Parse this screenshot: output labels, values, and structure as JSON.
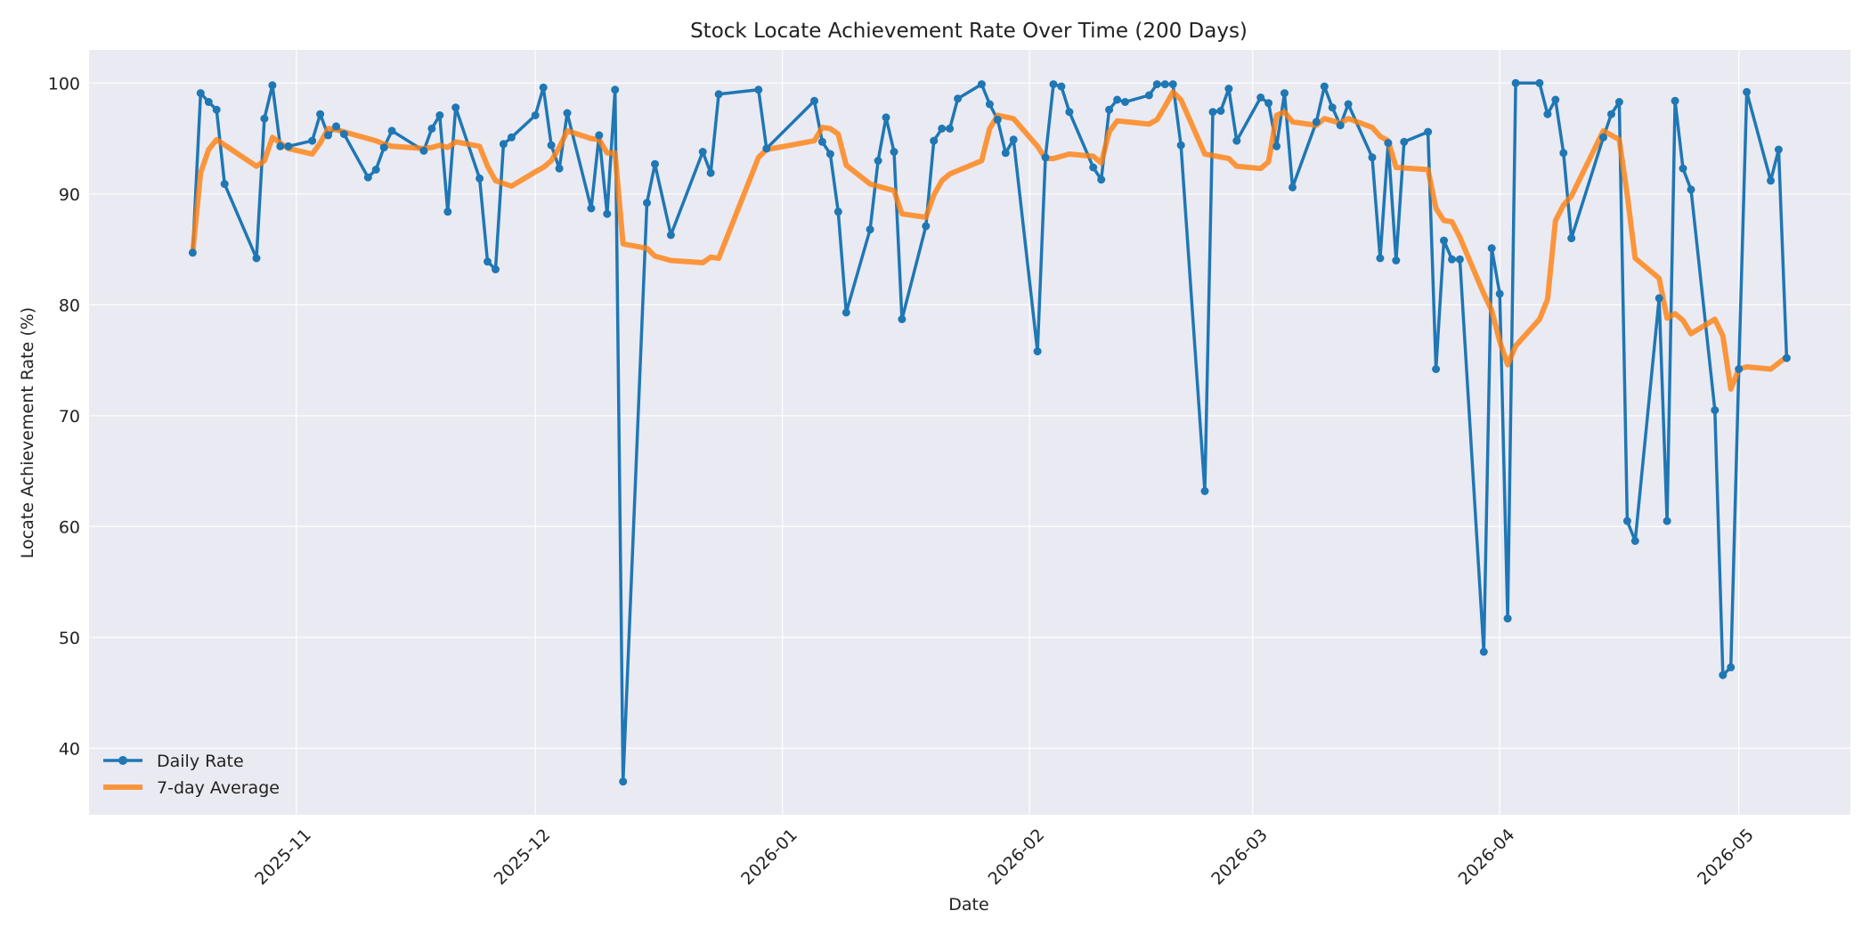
{
  "chart_data": {
    "type": "line",
    "title": "Stock Locate Achievement Rate Over Time (200 Days)",
    "xlabel": "Date",
    "ylabel": "Locate Achievement Rate (%)",
    "x_range": [
      "2025-10-06",
      "2026-05-15"
    ],
    "ylim": [
      34,
      103
    ],
    "y_ticks": [
      40,
      50,
      60,
      70,
      80,
      90,
      100
    ],
    "x_ticks": [
      "2025-11",
      "2025-12",
      "2026-01",
      "2026-02",
      "2026-03",
      "2026-04",
      "2026-05"
    ],
    "grid": true,
    "legend_position": "bottom-left",
    "colors": {
      "daily": "#1f77b4",
      "avg": "#ff7f0e",
      "background": "#eaeaf2"
    },
    "series": [
      {
        "name": "Daily Rate",
        "points": [
          [
            "2025-10-19",
            84.7
          ],
          [
            "2025-10-20",
            99.1
          ],
          [
            "2025-10-21",
            98.3
          ],
          [
            "2025-10-22",
            97.6
          ],
          [
            "2025-10-23",
            90.9
          ],
          [
            "2025-10-27",
            84.2
          ],
          [
            "2025-10-28",
            96.8
          ],
          [
            "2025-10-29",
            99.8
          ],
          [
            "2025-10-30",
            94.3
          ],
          [
            "2025-10-31",
            94.3
          ],
          [
            "2025-11-03",
            94.8
          ],
          [
            "2025-11-04",
            97.2
          ],
          [
            "2025-11-05",
            95.3
          ],
          [
            "2025-11-06",
            96.1
          ],
          [
            "2025-11-07",
            95.4
          ],
          [
            "2025-11-10",
            91.5
          ],
          [
            "2025-11-11",
            92.2
          ],
          [
            "2025-11-12",
            94.2
          ],
          [
            "2025-11-13",
            95.7
          ],
          [
            "2025-11-17",
            93.9
          ],
          [
            "2025-11-18",
            95.9
          ],
          [
            "2025-11-19",
            97.1
          ],
          [
            "2025-11-20",
            88.4
          ],
          [
            "2025-11-21",
            97.8
          ],
          [
            "2025-11-24",
            91.4
          ],
          [
            "2025-11-25",
            83.9
          ],
          [
            "2025-11-26",
            83.2
          ],
          [
            "2025-11-27",
            94.5
          ],
          [
            "2025-11-28",
            95.1
          ],
          [
            "2025-12-01",
            97.1
          ],
          [
            "2025-12-02",
            99.6
          ],
          [
            "2025-12-03",
            94.4
          ],
          [
            "2025-12-04",
            92.3
          ],
          [
            "2025-12-05",
            97.3
          ],
          [
            "2025-12-08",
            88.7
          ],
          [
            "2025-12-09",
            95.3
          ],
          [
            "2025-12-10",
            88.2
          ],
          [
            "2025-12-11",
            99.4
          ],
          [
            "2025-12-12",
            37.0
          ],
          [
            "2025-12-15",
            89.2
          ],
          [
            "2025-12-16",
            92.7
          ],
          [
            "2025-12-18",
            86.3
          ],
          [
            "2025-12-22",
            93.8
          ],
          [
            "2025-12-23",
            91.9
          ],
          [
            "2025-12-24",
            99.0
          ],
          [
            "2025-12-29",
            99.4
          ],
          [
            "2025-12-30",
            94.1
          ],
          [
            "2026-01-05",
            98.4
          ],
          [
            "2026-01-06",
            94.7
          ],
          [
            "2026-01-07",
            93.6
          ],
          [
            "2026-01-08",
            88.4
          ],
          [
            "2026-01-09",
            79.3
          ],
          [
            "2026-01-12",
            86.8
          ],
          [
            "2026-01-13",
            93.0
          ],
          [
            "2026-01-14",
            96.9
          ],
          [
            "2026-01-15",
            93.8
          ],
          [
            "2026-01-16",
            78.7
          ],
          [
            "2026-01-19",
            87.1
          ],
          [
            "2026-01-20",
            94.8
          ],
          [
            "2026-01-21",
            95.9
          ],
          [
            "2026-01-22",
            95.9
          ],
          [
            "2026-01-23",
            98.6
          ],
          [
            "2026-01-26",
            99.9
          ],
          [
            "2026-01-27",
            98.1
          ],
          [
            "2026-01-28",
            96.7
          ],
          [
            "2026-01-29",
            93.7
          ],
          [
            "2026-01-30",
            94.9
          ],
          [
            "2026-02-02",
            75.8
          ],
          [
            "2026-02-03",
            93.3
          ],
          [
            "2026-02-04",
            99.9
          ],
          [
            "2026-02-05",
            99.7
          ],
          [
            "2026-02-06",
            97.4
          ],
          [
            "2026-02-09",
            92.4
          ],
          [
            "2026-02-10",
            91.3
          ],
          [
            "2026-02-11",
            97.6
          ],
          [
            "2026-02-12",
            98.5
          ],
          [
            "2026-02-13",
            98.3
          ],
          [
            "2026-02-16",
            98.9
          ],
          [
            "2026-02-17",
            99.9
          ],
          [
            "2026-02-18",
            99.9
          ],
          [
            "2026-02-19",
            99.9
          ],
          [
            "2026-02-20",
            94.4
          ],
          [
            "2026-02-23",
            63.2
          ],
          [
            "2026-02-24",
            97.4
          ],
          [
            "2026-02-25",
            97.5
          ],
          [
            "2026-02-26",
            99.5
          ],
          [
            "2026-02-27",
            94.8
          ],
          [
            "2026-03-02",
            98.7
          ],
          [
            "2026-03-03",
            98.2
          ],
          [
            "2026-03-04",
            94.3
          ],
          [
            "2026-03-05",
            99.1
          ],
          [
            "2026-03-06",
            90.6
          ],
          [
            "2026-03-09",
            96.5
          ],
          [
            "2026-03-10",
            99.7
          ],
          [
            "2026-03-11",
            97.8
          ],
          [
            "2026-03-12",
            96.2
          ],
          [
            "2026-03-13",
            98.1
          ],
          [
            "2026-03-16",
            93.3
          ],
          [
            "2026-03-17",
            84.2
          ],
          [
            "2026-03-18",
            94.6
          ],
          [
            "2026-03-19",
            84.0
          ],
          [
            "2026-03-20",
            94.7
          ],
          [
            "2026-03-23",
            95.6
          ],
          [
            "2026-03-24",
            74.2
          ],
          [
            "2026-03-25",
            85.8
          ],
          [
            "2026-03-26",
            84.1
          ],
          [
            "2026-03-27",
            84.1
          ],
          [
            "2026-03-30",
            48.7
          ],
          [
            "2026-03-31",
            85.1
          ],
          [
            "2026-04-01",
            81.0
          ],
          [
            "2026-04-02",
            51.7
          ],
          [
            "2026-04-03",
            100.0
          ],
          [
            "2026-04-06",
            100.0
          ],
          [
            "2026-04-07",
            97.2
          ],
          [
            "2026-04-08",
            98.5
          ],
          [
            "2026-04-09",
            93.7
          ],
          [
            "2026-04-10",
            86.0
          ],
          [
            "2026-04-14",
            95.1
          ],
          [
            "2026-04-15",
            97.2
          ],
          [
            "2026-04-16",
            98.3
          ],
          [
            "2026-04-17",
            60.5
          ],
          [
            "2026-04-18",
            58.7
          ],
          [
            "2026-04-21",
            80.6
          ],
          [
            "2026-04-22",
            60.5
          ],
          [
            "2026-04-23",
            98.4
          ],
          [
            "2026-04-24",
            92.3
          ],
          [
            "2026-04-25",
            90.4
          ],
          [
            "2026-04-28",
            70.5
          ],
          [
            "2026-04-29",
            46.6
          ],
          [
            "2026-04-30",
            47.3
          ],
          [
            "2026-05-01",
            74.2
          ],
          [
            "2026-05-02",
            99.2
          ],
          [
            "2026-05-05",
            91.2
          ],
          [
            "2026-05-06",
            94.0
          ],
          [
            "2026-05-07",
            75.2
          ]
        ]
      },
      {
        "name": "7-day Average",
        "points": [
          [
            "2025-10-19",
            84.7
          ],
          [
            "2025-10-20",
            91.9
          ],
          [
            "2025-10-21",
            94.0
          ],
          [
            "2025-10-22",
            94.9
          ],
          [
            "2025-10-27",
            92.5
          ],
          [
            "2025-10-28",
            93.0
          ],
          [
            "2025-10-29",
            95.1
          ],
          [
            "2025-10-30",
            94.6
          ],
          [
            "2025-10-31",
            94.1
          ],
          [
            "2025-11-03",
            93.6
          ],
          [
            "2025-11-04",
            94.6
          ],
          [
            "2025-11-05",
            95.9
          ],
          [
            "2025-11-06",
            95.8
          ],
          [
            "2025-11-10",
            95.0
          ],
          [
            "2025-11-11",
            94.8
          ],
          [
            "2025-11-12",
            94.5
          ],
          [
            "2025-11-13",
            94.3
          ],
          [
            "2025-11-17",
            94.1
          ],
          [
            "2025-11-18",
            94.2
          ],
          [
            "2025-11-19",
            94.4
          ],
          [
            "2025-11-20",
            94.2
          ],
          [
            "2025-11-21",
            94.7
          ],
          [
            "2025-11-24",
            94.3
          ],
          [
            "2025-11-25",
            92.5
          ],
          [
            "2025-11-26",
            91.2
          ],
          [
            "2025-11-28",
            90.7
          ],
          [
            "2025-12-01",
            92.0
          ],
          [
            "2025-12-02",
            92.4
          ],
          [
            "2025-12-03",
            93.0
          ],
          [
            "2025-12-04",
            94.2
          ],
          [
            "2025-12-05",
            95.7
          ],
          [
            "2025-12-08",
            95.0
          ],
          [
            "2025-12-09",
            94.9
          ],
          [
            "2025-12-10",
            93.7
          ],
          [
            "2025-12-11",
            93.7
          ],
          [
            "2025-12-12",
            85.5
          ],
          [
            "2025-12-15",
            85.1
          ],
          [
            "2025-12-16",
            84.4
          ],
          [
            "2025-12-18",
            84.0
          ],
          [
            "2025-12-22",
            83.8
          ],
          [
            "2025-12-23",
            84.3
          ],
          [
            "2025-12-24",
            84.2
          ],
          [
            "2025-12-29",
            93.3
          ],
          [
            "2025-12-30",
            94.0
          ],
          [
            "2026-01-05",
            94.8
          ],
          [
            "2026-01-06",
            96.0
          ],
          [
            "2026-01-07",
            95.9
          ],
          [
            "2026-01-08",
            95.4
          ],
          [
            "2026-01-09",
            92.6
          ],
          [
            "2026-01-12",
            90.9
          ],
          [
            "2026-01-15",
            90.3
          ],
          [
            "2026-01-16",
            88.2
          ],
          [
            "2026-01-19",
            87.9
          ],
          [
            "2026-01-20",
            89.9
          ],
          [
            "2026-01-21",
            91.2
          ],
          [
            "2026-01-22",
            91.8
          ],
          [
            "2026-01-26",
            93.0
          ],
          [
            "2026-01-27",
            95.9
          ],
          [
            "2026-01-28",
            97.1
          ],
          [
            "2026-01-30",
            96.8
          ],
          [
            "2026-02-02",
            94.3
          ],
          [
            "2026-02-03",
            93.2
          ],
          [
            "2026-02-04",
            93.2
          ],
          [
            "2026-02-06",
            93.6
          ],
          [
            "2026-02-09",
            93.4
          ],
          [
            "2026-02-10",
            92.8
          ],
          [
            "2026-02-11",
            95.6
          ],
          [
            "2026-02-12",
            96.6
          ],
          [
            "2026-02-16",
            96.3
          ],
          [
            "2026-02-17",
            96.7
          ],
          [
            "2026-02-18",
            97.9
          ],
          [
            "2026-02-19",
            99.2
          ],
          [
            "2026-02-20",
            98.5
          ],
          [
            "2026-02-23",
            93.6
          ],
          [
            "2026-02-26",
            93.2
          ],
          [
            "2026-02-27",
            92.5
          ],
          [
            "2026-03-02",
            92.3
          ],
          [
            "2026-03-03",
            92.9
          ],
          [
            "2026-03-04",
            97.1
          ],
          [
            "2026-03-05",
            97.4
          ],
          [
            "2026-03-06",
            96.5
          ],
          [
            "2026-03-09",
            96.2
          ],
          [
            "2026-03-10",
            96.8
          ],
          [
            "2026-03-12",
            96.4
          ],
          [
            "2026-03-13",
            96.8
          ],
          [
            "2026-03-16",
            96.0
          ],
          [
            "2026-03-17",
            95.2
          ],
          [
            "2026-03-18",
            94.8
          ],
          [
            "2026-03-19",
            92.4
          ],
          [
            "2026-03-23",
            92.2
          ],
          [
            "2026-03-24",
            88.7
          ],
          [
            "2026-03-25",
            87.6
          ],
          [
            "2026-03-26",
            87.5
          ],
          [
            "2026-03-27",
            86.1
          ],
          [
            "2026-03-30",
            81.0
          ],
          [
            "2026-03-31",
            79.5
          ],
          [
            "2026-04-01",
            76.7
          ],
          [
            "2026-04-02",
            74.6
          ],
          [
            "2026-04-03",
            76.3
          ],
          [
            "2026-04-06",
            78.7
          ],
          [
            "2026-04-07",
            80.5
          ],
          [
            "2026-04-08",
            87.6
          ],
          [
            "2026-04-09",
            89.0
          ],
          [
            "2026-04-10",
            89.8
          ],
          [
            "2026-04-14",
            95.7
          ],
          [
            "2026-04-16",
            94.9
          ],
          [
            "2026-04-17",
            89.9
          ],
          [
            "2026-04-18",
            84.2
          ],
          [
            "2026-04-21",
            82.4
          ],
          [
            "2026-04-22",
            78.8
          ],
          [
            "2026-04-23",
            79.2
          ],
          [
            "2026-04-24",
            78.6
          ],
          [
            "2026-04-25",
            77.4
          ],
          [
            "2026-04-28",
            78.7
          ],
          [
            "2026-04-29",
            77.2
          ],
          [
            "2026-04-30",
            72.4
          ],
          [
            "2026-05-01",
            74.2
          ],
          [
            "2026-05-02",
            74.4
          ],
          [
            "2026-05-05",
            74.2
          ],
          [
            "2026-05-07",
            75.3
          ]
        ]
      }
    ]
  }
}
